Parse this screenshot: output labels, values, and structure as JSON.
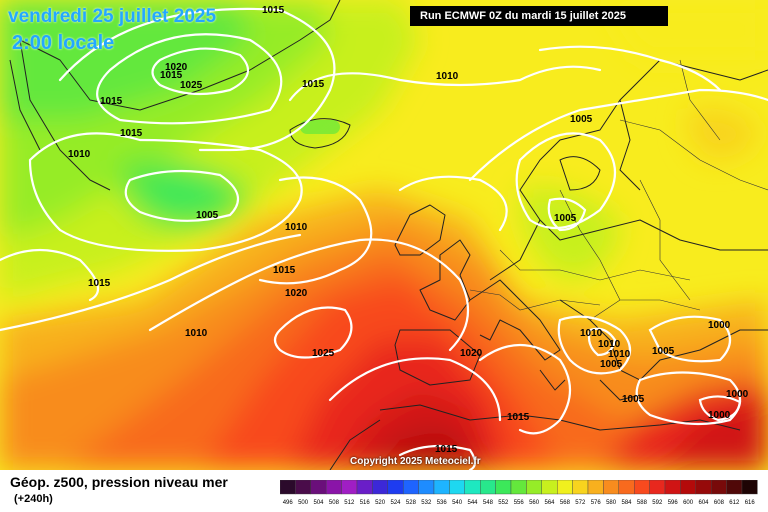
{
  "header": {
    "date": "vendredi 25 juillet 2025",
    "time": "2:00 locale",
    "run": "Run ECMWF 0Z du mardi 15 juillet 2025"
  },
  "map": {
    "copyright": "Copyright 2025 Meteociel.fr",
    "isobar_labels": [
      "1015",
      "1020",
      "1015",
      "1025",
      "1015",
      "1015",
      "1010",
      "1005",
      "1015",
      "1010",
      "1005",
      "1010",
      "1015",
      "1020",
      "1015",
      "1010",
      "1025",
      "1020",
      "1005",
      "1010",
      "1010",
      "1010",
      "1005",
      "1005",
      "1000",
      "1005",
      "1000",
      "1000",
      "1015",
      "1015"
    ]
  },
  "footer": {
    "title": "Géop. z500, pression niveau mer",
    "subtitle": "(+240h)"
  },
  "legend": {
    "values": [
      "496",
      "500",
      "504",
      "508",
      "512",
      "516",
      "520",
      "524",
      "528",
      "532",
      "536",
      "540",
      "544",
      "548",
      "552",
      "556",
      "560",
      "564",
      "568",
      "572",
      "576",
      "580",
      "584",
      "588",
      "592",
      "596",
      "600",
      "604",
      "608",
      "612",
      "616"
    ],
    "colors": [
      "#2b0a2b",
      "#4a0c4a",
      "#6a0f7a",
      "#8a14a8",
      "#a01ec4",
      "#6a1ec8",
      "#3c28d8",
      "#1e3cf0",
      "#1e64ff",
      "#1e8cff",
      "#1eb4ff",
      "#1ed8f0",
      "#1ee8c0",
      "#28e88c",
      "#3ce85a",
      "#64e83c",
      "#96ec28",
      "#c8f01e",
      "#f0f01e",
      "#f8d41e",
      "#f8b01e",
      "#f88c1e",
      "#f86a1e",
      "#f84a1e",
      "#e8281e",
      "#d01414",
      "#b40a0a",
      "#960a0a",
      "#780a0a",
      "#500808",
      "#1e0404"
    ]
  }
}
